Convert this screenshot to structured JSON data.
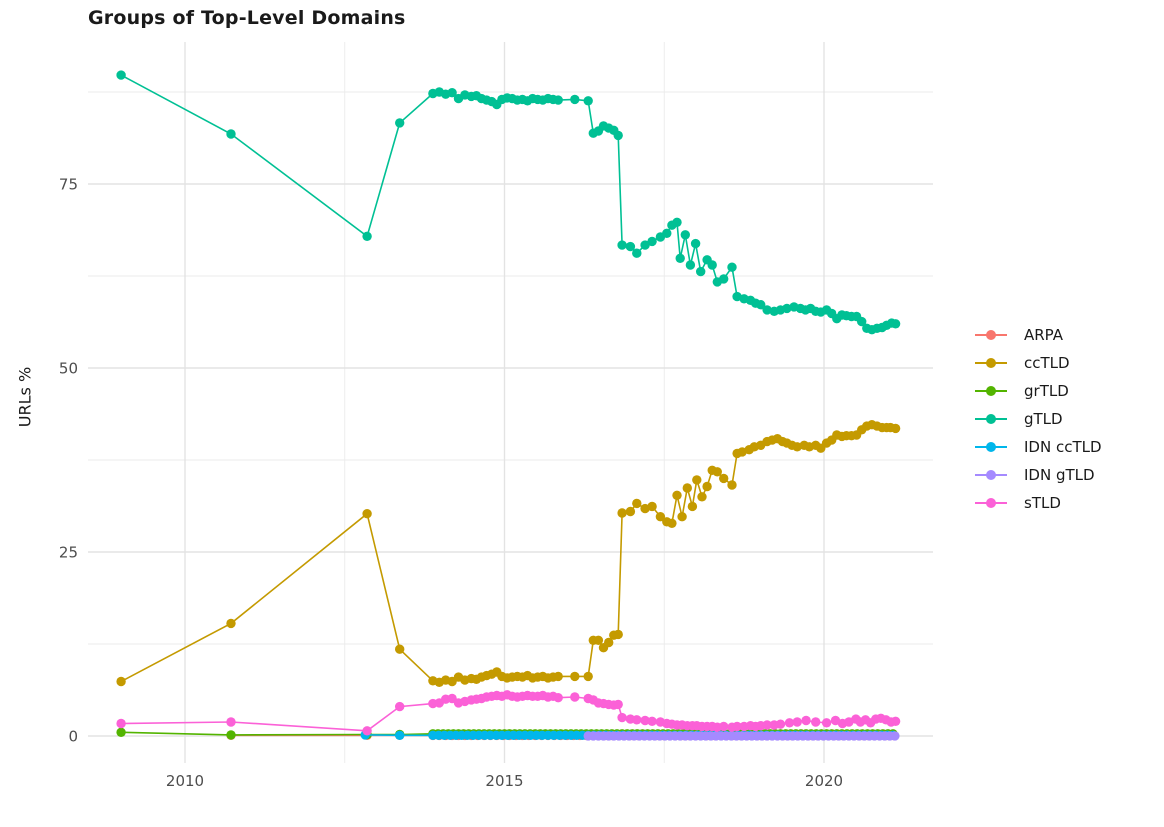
{
  "title": "Groups of Top-Level Domains",
  "y_axis": {
    "label": "URLs %",
    "ticks": [
      0,
      25,
      50,
      75
    ],
    "minor_ticks": [
      12.5,
      37.5,
      62.5,
      87.5
    ]
  },
  "x_axis": {
    "ticks": [
      2010,
      2015,
      2020
    ],
    "tick_labels": [
      "2010",
      "2015",
      "2020"
    ],
    "minor_ticks": [
      2012.5,
      2017.5
    ]
  },
  "legend": {
    "position": "right",
    "entries": [
      {
        "label": "ARPA",
        "color": "#F8766D"
      },
      {
        "label": "ccTLD",
        "color": "#C49A00"
      },
      {
        "label": "grTLD",
        "color": "#53B400"
      },
      {
        "label": "gTLD",
        "color": "#00C094"
      },
      {
        "label": "IDN ccTLD",
        "color": "#00B6EB"
      },
      {
        "label": "IDN gTLD",
        "color": "#A58AFF"
      },
      {
        "label": "sTLD",
        "color": "#FB61D7"
      }
    ]
  },
  "chart_data": {
    "type": "line",
    "title": "Groups of Top-Level Domains",
    "xlabel": "",
    "ylabel": "URLs %",
    "xlim": [
      2008.5,
      2021.7
    ],
    "ylim": [
      -4,
      94.5
    ],
    "grid": true,
    "legend_position": "right",
    "series": [
      {
        "name": "ARPA",
        "color": "#F8766D",
        "points": [
          [
            2010.72,
            0.1
          ],
          [
            2012.85,
            0.1
          ],
          [
            2013.36,
            0.1
          ]
        ],
        "runs": [
          {
            "x0": 2013.88,
            "x1": 2021.12,
            "step": 0.1,
            "y": 0.08
          }
        ]
      },
      {
        "name": "ccTLD",
        "color": "#C49A00",
        "points": [
          [
            2009.0,
            7.4
          ],
          [
            2010.72,
            15.3
          ],
          [
            2012.85,
            30.2
          ],
          [
            2013.36,
            11.8
          ],
          [
            2013.88,
            7.5
          ],
          [
            2013.98,
            7.3
          ],
          [
            2014.08,
            7.6
          ],
          [
            2014.18,
            7.4
          ],
          [
            2014.28,
            8.0
          ],
          [
            2014.38,
            7.6
          ],
          [
            2014.48,
            7.8
          ],
          [
            2014.56,
            7.7
          ],
          [
            2014.64,
            8.0
          ],
          [
            2014.72,
            8.2
          ],
          [
            2014.8,
            8.4
          ],
          [
            2014.88,
            8.7
          ],
          [
            2014.96,
            8.1
          ],
          [
            2015.04,
            7.9
          ],
          [
            2015.12,
            8.0
          ],
          [
            2015.2,
            8.1
          ],
          [
            2015.28,
            8.0
          ],
          [
            2015.36,
            8.2
          ],
          [
            2015.44,
            7.9
          ],
          [
            2015.52,
            8.0
          ],
          [
            2015.6,
            8.1
          ],
          [
            2015.68,
            7.9
          ],
          [
            2015.76,
            8.0
          ],
          [
            2015.84,
            8.1
          ],
          [
            2016.1,
            8.1
          ],
          [
            2016.31,
            8.1
          ],
          [
            2016.39,
            13.0
          ],
          [
            2016.47,
            13.0
          ],
          [
            2016.55,
            12.0
          ],
          [
            2016.63,
            12.7
          ],
          [
            2016.71,
            13.7
          ],
          [
            2016.78,
            13.8
          ],
          [
            2016.84,
            30.3
          ],
          [
            2016.97,
            30.5
          ],
          [
            2017.07,
            31.6
          ],
          [
            2017.2,
            30.9
          ],
          [
            2017.31,
            31.2
          ],
          [
            2017.44,
            29.8
          ],
          [
            2017.54,
            29.1
          ],
          [
            2017.62,
            28.9
          ],
          [
            2017.7,
            32.7
          ],
          [
            2017.78,
            29.8
          ],
          [
            2017.86,
            33.7
          ],
          [
            2017.94,
            31.2
          ],
          [
            2018.01,
            34.8
          ],
          [
            2018.09,
            32.5
          ],
          [
            2018.17,
            33.9
          ],
          [
            2018.25,
            36.1
          ],
          [
            2018.33,
            35.9
          ],
          [
            2018.43,
            35.0
          ],
          [
            2018.56,
            34.1
          ],
          [
            2018.64,
            38.4
          ],
          [
            2018.72,
            38.6
          ],
          [
            2018.83,
            38.9
          ],
          [
            2018.91,
            39.3
          ],
          [
            2019.01,
            39.5
          ],
          [
            2019.11,
            40.0
          ],
          [
            2019.19,
            40.2
          ],
          [
            2019.27,
            40.4
          ],
          [
            2019.35,
            40.0
          ],
          [
            2019.42,
            39.8
          ],
          [
            2019.5,
            39.5
          ],
          [
            2019.58,
            39.3
          ],
          [
            2019.69,
            39.5
          ],
          [
            2019.77,
            39.3
          ],
          [
            2019.87,
            39.5
          ],
          [
            2019.95,
            39.1
          ],
          [
            2020.04,
            39.8
          ],
          [
            2020.12,
            40.2
          ],
          [
            2020.2,
            40.9
          ],
          [
            2020.28,
            40.7
          ],
          [
            2020.35,
            40.8
          ],
          [
            2020.43,
            40.8
          ],
          [
            2020.51,
            40.9
          ],
          [
            2020.59,
            41.6
          ],
          [
            2020.67,
            42.1
          ],
          [
            2020.75,
            42.3
          ],
          [
            2020.83,
            42.1
          ],
          [
            2020.91,
            41.9
          ],
          [
            2020.98,
            41.9
          ],
          [
            2021.04,
            41.9
          ],
          [
            2021.12,
            41.8
          ]
        ]
      },
      {
        "name": "grTLD",
        "color": "#53B400",
        "points": [
          [
            2009.0,
            0.5
          ],
          [
            2010.72,
            0.15
          ],
          [
            2012.85,
            0.2
          ],
          [
            2013.36,
            0.2
          ]
        ],
        "runs": [
          {
            "x0": 2013.88,
            "x1": 2021.12,
            "step": 0.08,
            "y": 0.3
          }
        ]
      },
      {
        "name": "gTLD",
        "color": "#00C094",
        "points": [
          [
            2009.0,
            89.8
          ],
          [
            2010.72,
            81.8
          ],
          [
            2012.85,
            67.9
          ],
          [
            2013.36,
            83.3
          ],
          [
            2013.88,
            87.3
          ],
          [
            2013.98,
            87.5
          ],
          [
            2014.08,
            87.2
          ],
          [
            2014.18,
            87.4
          ],
          [
            2014.28,
            86.6
          ],
          [
            2014.38,
            87.1
          ],
          [
            2014.48,
            86.9
          ],
          [
            2014.56,
            87.0
          ],
          [
            2014.64,
            86.6
          ],
          [
            2014.72,
            86.4
          ],
          [
            2014.8,
            86.2
          ],
          [
            2014.88,
            85.8
          ],
          [
            2014.96,
            86.5
          ],
          [
            2015.04,
            86.7
          ],
          [
            2015.12,
            86.6
          ],
          [
            2015.2,
            86.4
          ],
          [
            2015.28,
            86.5
          ],
          [
            2015.36,
            86.3
          ],
          [
            2015.44,
            86.6
          ],
          [
            2015.52,
            86.5
          ],
          [
            2015.6,
            86.4
          ],
          [
            2015.68,
            86.6
          ],
          [
            2015.76,
            86.5
          ],
          [
            2015.84,
            86.4
          ],
          [
            2016.1,
            86.5
          ],
          [
            2016.31,
            86.3
          ],
          [
            2016.39,
            81.9
          ],
          [
            2016.47,
            82.2
          ],
          [
            2016.55,
            82.9
          ],
          [
            2016.63,
            82.6
          ],
          [
            2016.71,
            82.3
          ],
          [
            2016.78,
            81.6
          ],
          [
            2016.84,
            66.7
          ],
          [
            2016.97,
            66.5
          ],
          [
            2017.07,
            65.6
          ],
          [
            2017.2,
            66.7
          ],
          [
            2017.31,
            67.2
          ],
          [
            2017.44,
            67.8
          ],
          [
            2017.54,
            68.3
          ],
          [
            2017.62,
            69.4
          ],
          [
            2017.7,
            69.8
          ],
          [
            2017.75,
            64.9
          ],
          [
            2017.83,
            68.1
          ],
          [
            2017.91,
            64.0
          ],
          [
            2017.99,
            66.9
          ],
          [
            2018.07,
            63.1
          ],
          [
            2018.17,
            64.7
          ],
          [
            2018.25,
            64.0
          ],
          [
            2018.33,
            61.7
          ],
          [
            2018.43,
            62.1
          ],
          [
            2018.56,
            63.7
          ],
          [
            2018.64,
            59.7
          ],
          [
            2018.75,
            59.4
          ],
          [
            2018.85,
            59.2
          ],
          [
            2018.93,
            58.8
          ],
          [
            2019.01,
            58.6
          ],
          [
            2019.11,
            57.9
          ],
          [
            2019.22,
            57.7
          ],
          [
            2019.32,
            57.9
          ],
          [
            2019.42,
            58.1
          ],
          [
            2019.53,
            58.3
          ],
          [
            2019.63,
            58.1
          ],
          [
            2019.71,
            57.9
          ],
          [
            2019.79,
            58.1
          ],
          [
            2019.87,
            57.7
          ],
          [
            2019.95,
            57.6
          ],
          [
            2020.04,
            57.9
          ],
          [
            2020.12,
            57.4
          ],
          [
            2020.2,
            56.7
          ],
          [
            2020.28,
            57.2
          ],
          [
            2020.35,
            57.1
          ],
          [
            2020.43,
            57.0
          ],
          [
            2020.51,
            57.0
          ],
          [
            2020.59,
            56.3
          ],
          [
            2020.67,
            55.4
          ],
          [
            2020.75,
            55.2
          ],
          [
            2020.83,
            55.4
          ],
          [
            2020.91,
            55.5
          ],
          [
            2020.98,
            55.8
          ],
          [
            2021.06,
            56.1
          ],
          [
            2021.12,
            56.0
          ]
        ]
      },
      {
        "name": "IDN ccTLD",
        "color": "#00B6EB",
        "points": [
          [
            2012.82,
            0.15
          ],
          [
            2013.36,
            0.1
          ]
        ],
        "runs": [
          {
            "x0": 2013.88,
            "x1": 2021.12,
            "step": 0.09,
            "y": 0.1
          }
        ]
      },
      {
        "name": "IDN gTLD",
        "color": "#A58AFF",
        "points": [],
        "runs": [
          {
            "x0": 2016.31,
            "x1": 2021.12,
            "step": 0.08,
            "y": 0.02
          }
        ]
      },
      {
        "name": "sTLD",
        "color": "#FB61D7",
        "points": [
          [
            2009.0,
            1.7
          ],
          [
            2010.72,
            1.9
          ],
          [
            2012.85,
            0.7
          ],
          [
            2013.36,
            4.0
          ],
          [
            2013.88,
            4.4
          ],
          [
            2013.98,
            4.5
          ],
          [
            2014.08,
            5.0
          ],
          [
            2014.18,
            5.1
          ],
          [
            2014.28,
            4.5
          ],
          [
            2014.38,
            4.7
          ],
          [
            2014.48,
            4.9
          ],
          [
            2014.56,
            5.0
          ],
          [
            2014.64,
            5.1
          ],
          [
            2014.72,
            5.3
          ],
          [
            2014.8,
            5.4
          ],
          [
            2014.88,
            5.5
          ],
          [
            2014.96,
            5.4
          ],
          [
            2015.04,
            5.6
          ],
          [
            2015.12,
            5.4
          ],
          [
            2015.2,
            5.3
          ],
          [
            2015.28,
            5.4
          ],
          [
            2015.36,
            5.5
          ],
          [
            2015.44,
            5.4
          ],
          [
            2015.52,
            5.4
          ],
          [
            2015.6,
            5.5
          ],
          [
            2015.68,
            5.3
          ],
          [
            2015.76,
            5.4
          ],
          [
            2015.84,
            5.2
          ],
          [
            2016.1,
            5.3
          ],
          [
            2016.31,
            5.1
          ],
          [
            2016.39,
            4.9
          ],
          [
            2016.47,
            4.5
          ],
          [
            2016.55,
            4.4
          ],
          [
            2016.63,
            4.3
          ],
          [
            2016.71,
            4.2
          ],
          [
            2016.78,
            4.3
          ],
          [
            2016.84,
            2.5
          ],
          [
            2016.97,
            2.3
          ],
          [
            2017.07,
            2.2
          ],
          [
            2017.2,
            2.1
          ],
          [
            2017.31,
            2.0
          ],
          [
            2017.44,
            1.9
          ],
          [
            2017.54,
            1.7
          ],
          [
            2017.62,
            1.6
          ],
          [
            2017.7,
            1.5
          ],
          [
            2017.78,
            1.5
          ],
          [
            2017.86,
            1.4
          ],
          [
            2017.94,
            1.4
          ],
          [
            2018.01,
            1.4
          ],
          [
            2018.09,
            1.3
          ],
          [
            2018.17,
            1.3
          ],
          [
            2018.25,
            1.3
          ],
          [
            2018.33,
            1.2
          ],
          [
            2018.43,
            1.3
          ],
          [
            2018.56,
            1.2
          ],
          [
            2018.64,
            1.3
          ],
          [
            2018.75,
            1.3
          ],
          [
            2018.85,
            1.4
          ],
          [
            2018.93,
            1.3
          ],
          [
            2019.01,
            1.4
          ],
          [
            2019.11,
            1.5
          ],
          [
            2019.22,
            1.5
          ],
          [
            2019.32,
            1.6
          ],
          [
            2019.46,
            1.8
          ],
          [
            2019.58,
            1.9
          ],
          [
            2019.72,
            2.1
          ],
          [
            2019.87,
            1.9
          ],
          [
            2020.04,
            1.8
          ],
          [
            2020.18,
            2.1
          ],
          [
            2020.29,
            1.7
          ],
          [
            2020.39,
            1.9
          ],
          [
            2020.5,
            2.3
          ],
          [
            2020.57,
            1.9
          ],
          [
            2020.65,
            2.2
          ],
          [
            2020.73,
            1.8
          ],
          [
            2020.81,
            2.3
          ],
          [
            2020.89,
            2.4
          ],
          [
            2020.97,
            2.2
          ],
          [
            2021.05,
            1.9
          ],
          [
            2021.12,
            2.0
          ]
        ]
      }
    ]
  }
}
